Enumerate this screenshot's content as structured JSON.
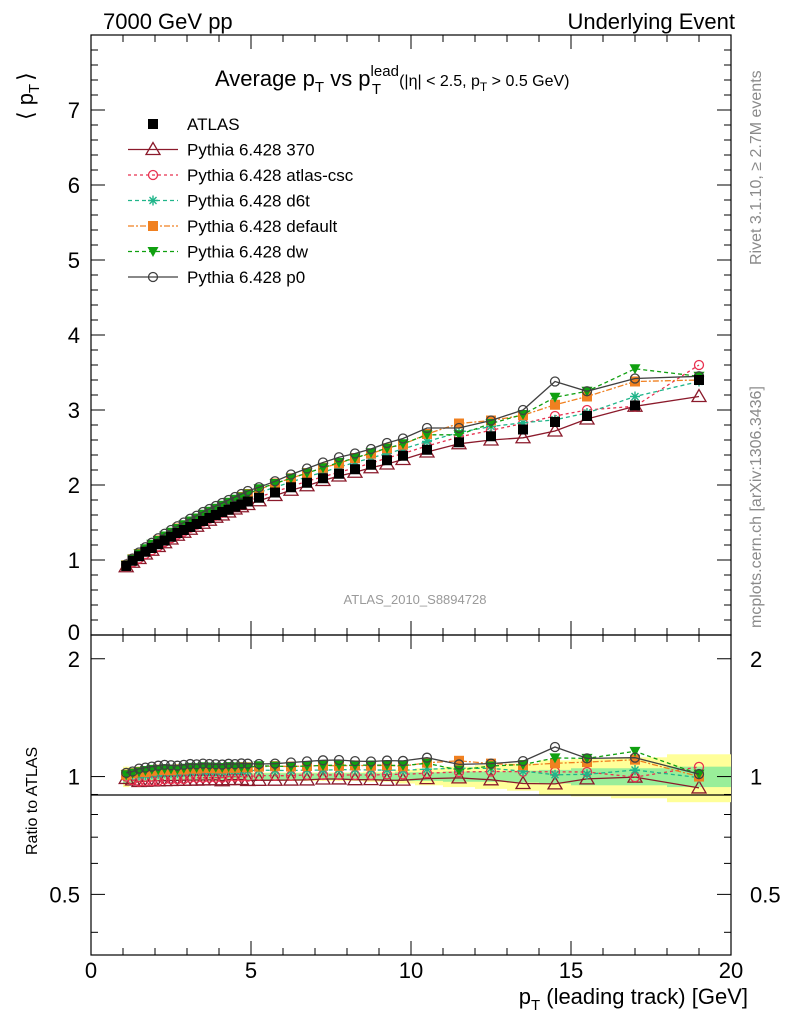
{
  "header": {
    "energy_label": "7000 GeV pp",
    "process_label": "Underlying Event"
  },
  "plot_title": {
    "main_prefix": "Average p",
    "main_sub_t": "T",
    "main_vs": " vs p",
    "main_sup": "lead",
    "main_sub_t2": "T",
    "cut_prefix": "(|η| < 2.5, p",
    "cut_sub": "T",
    "cut_suffix": " > 0.5 GeV)"
  },
  "side_text": {
    "rivet": "Rivet 3.1.10, ≥ 2.7M events",
    "mcplots": "mcplots.cern.ch [arXiv:1306.3436]"
  },
  "analysis_id": "ATLAS_2010_S8894728",
  "y_axis_top": {
    "left": "⟨ p",
    "sub": "T",
    "right": "⟩"
  },
  "y_axis_bottom": "Ratio to ATLAS",
  "x_axis": {
    "prefix": "p",
    "sub": "T",
    "suffix": " (leading track) [GeV]"
  },
  "chart_data": {
    "type": "line",
    "x": [
      1.1,
      1.3,
      1.5,
      1.7,
      1.9,
      2.1,
      2.3,
      2.5,
      2.7,
      2.9,
      3.1,
      3.3,
      3.5,
      3.7,
      3.9,
      4.1,
      4.3,
      4.5,
      4.7,
      4.9,
      5.25,
      5.75,
      6.25,
      6.75,
      7.25,
      7.75,
      8.25,
      8.75,
      9.25,
      9.75,
      10.5,
      11.5,
      12.5,
      13.5,
      14.5,
      15.5,
      17.0,
      19.0
    ],
    "xlim": [
      0,
      20
    ],
    "ylim_top": [
      0,
      8
    ],
    "ylim_ratio": [
      0.35,
      2.3
    ],
    "x_ticks": [
      "0",
      "5",
      "10",
      "15",
      "20"
    ],
    "y_ticks_top": [
      "0",
      "1",
      "2",
      "3",
      "4",
      "5",
      "6",
      "7"
    ],
    "y_ticks_ratio": [
      "0.5",
      "1",
      "2"
    ],
    "ratio_band_inner": [
      0.04,
      0.035,
      0.03,
      0.025,
      0.02,
      0.02,
      0.02,
      0.02,
      0.02,
      0.02,
      0.02,
      0.02,
      0.02,
      0.02,
      0.02,
      0.02,
      0.02,
      0.02,
      0.02,
      0.02,
      0.02,
      0.02,
      0.02,
      0.02,
      0.02,
      0.02,
      0.02,
      0.02,
      0.02,
      0.025,
      0.025,
      0.03,
      0.03,
      0.035,
      0.04,
      0.05,
      0.05,
      0.06
    ],
    "ratio_band_outer": [
      0.06,
      0.045,
      0.035,
      0.03,
      0.025,
      0.025,
      0.025,
      0.025,
      0.025,
      0.025,
      0.025,
      0.025,
      0.025,
      0.025,
      0.025,
      0.025,
      0.025,
      0.025,
      0.025,
      0.025,
      0.025,
      0.025,
      0.025,
      0.025,
      0.025,
      0.025,
      0.025,
      0.03,
      0.03,
      0.04,
      0.05,
      0.06,
      0.07,
      0.08,
      0.1,
      0.11,
      0.12,
      0.14
    ],
    "series": [
      {
        "name": "ATLAS",
        "color": "#000000",
        "marker": "square-filled",
        "dash": "none",
        "values": [
          0.92,
          0.99,
          1.05,
          1.11,
          1.16,
          1.21,
          1.26,
          1.31,
          1.36,
          1.4,
          1.44,
          1.48,
          1.52,
          1.56,
          1.6,
          1.64,
          1.67,
          1.71,
          1.74,
          1.78,
          1.83,
          1.9,
          1.97,
          2.03,
          2.09,
          2.15,
          2.21,
          2.27,
          2.33,
          2.39,
          2.47,
          2.57,
          2.65,
          2.74,
          2.84,
          2.92,
          3.06,
          3.4
        ]
      },
      {
        "name": "Pythia 6.428 370",
        "color": "#8b1a2b",
        "marker": "triangle-open",
        "dash": "none",
        "values": [
          0.91,
          0.97,
          1.02,
          1.08,
          1.13,
          1.18,
          1.23,
          1.28,
          1.33,
          1.37,
          1.41,
          1.45,
          1.49,
          1.53,
          1.57,
          1.6,
          1.64,
          1.68,
          1.71,
          1.74,
          1.79,
          1.86,
          1.93,
          1.99,
          2.06,
          2.12,
          2.17,
          2.23,
          2.28,
          2.34,
          2.44,
          2.55,
          2.6,
          2.63,
          2.72,
          2.88,
          3.05,
          3.18
        ]
      },
      {
        "name": "Pythia 6.428 atlas-csc",
        "color": "#e8304f",
        "marker": "circle-open",
        "dash": "3,3",
        "values": [
          0.92,
          0.97,
          1.02,
          1.08,
          1.13,
          1.18,
          1.24,
          1.29,
          1.34,
          1.38,
          1.43,
          1.47,
          1.51,
          1.55,
          1.59,
          1.63,
          1.67,
          1.71,
          1.74,
          1.78,
          1.84,
          1.91,
          1.98,
          2.05,
          2.11,
          2.17,
          2.23,
          2.29,
          2.36,
          2.42,
          2.52,
          2.64,
          2.73,
          2.82,
          2.92,
          3.0,
          3.05,
          3.6
        ]
      },
      {
        "name": "Pythia 6.428 d6t",
        "color": "#20b58a",
        "marker": "star",
        "dash": "4,3",
        "values": [
          0.93,
          1.0,
          1.06,
          1.12,
          1.18,
          1.23,
          1.29,
          1.34,
          1.39,
          1.44,
          1.48,
          1.53,
          1.57,
          1.61,
          1.65,
          1.69,
          1.73,
          1.77,
          1.8,
          1.84,
          1.9,
          1.97,
          2.04,
          2.11,
          2.17,
          2.24,
          2.3,
          2.36,
          2.42,
          2.48,
          2.58,
          2.7,
          2.78,
          2.83,
          2.87,
          2.96,
          3.18,
          3.38
        ]
      },
      {
        "name": "Pythia 6.428 default",
        "color": "#f08020",
        "marker": "square-filled",
        "dash": "6,2,2,2",
        "values": [
          0.93,
          1.01,
          1.08,
          1.14,
          1.2,
          1.26,
          1.31,
          1.36,
          1.42,
          1.46,
          1.51,
          1.55,
          1.6,
          1.64,
          1.68,
          1.72,
          1.76,
          1.8,
          1.84,
          1.88,
          1.94,
          2.02,
          2.09,
          2.16,
          2.23,
          2.29,
          2.36,
          2.42,
          2.49,
          2.54,
          2.68,
          2.82,
          2.86,
          2.93,
          3.07,
          3.18,
          3.38,
          3.4
        ]
      },
      {
        "name": "Pythia 6.428 dw",
        "color": "#10a010",
        "marker": "triangle-down-filled",
        "dash": "4,3",
        "values": [
          0.93,
          1.01,
          1.08,
          1.15,
          1.21,
          1.26,
          1.32,
          1.37,
          1.42,
          1.47,
          1.52,
          1.56,
          1.61,
          1.65,
          1.69,
          1.73,
          1.77,
          1.81,
          1.84,
          1.88,
          1.95,
          2.02,
          2.09,
          2.16,
          2.23,
          2.3,
          2.36,
          2.43,
          2.49,
          2.55,
          2.67,
          2.67,
          2.82,
          2.94,
          3.17,
          3.25,
          3.55,
          3.45
        ]
      },
      {
        "name": "Pythia 6.428 p0",
        "color": "#404040",
        "marker": "circle-open",
        "dash": "none",
        "values": [
          0.94,
          1.02,
          1.1,
          1.17,
          1.23,
          1.29,
          1.35,
          1.4,
          1.45,
          1.5,
          1.55,
          1.59,
          1.64,
          1.68,
          1.72,
          1.76,
          1.8,
          1.84,
          1.88,
          1.92,
          1.97,
          2.05,
          2.14,
          2.22,
          2.3,
          2.37,
          2.42,
          2.48,
          2.56,
          2.62,
          2.76,
          2.76,
          2.86,
          3.0,
          3.38,
          3.25,
          3.42,
          3.45
        ]
      }
    ]
  }
}
